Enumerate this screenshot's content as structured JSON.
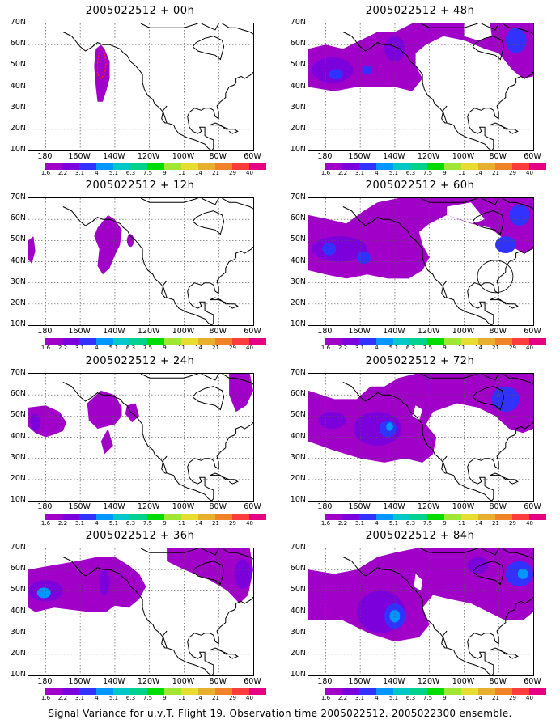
{
  "footer": "Signal Variance for u,v,T. Flight 19. Observation time 2005022512. 2005022300 ensemble.",
  "lat_labels": [
    "70N",
    "60N",
    "50N",
    "40N",
    "30N",
    "20N",
    "10N"
  ],
  "lon_labels": [
    "180",
    "160W",
    "140W",
    "120W",
    "100W",
    "80W",
    "60W"
  ],
  "colorbar": {
    "levels": [
      "1.6",
      "2.2",
      "3.1",
      "4",
      "5.1",
      "6.3",
      "7.5",
      "9",
      "11",
      "14",
      "21",
      "29",
      "40"
    ],
    "colors": [
      "#a000c8",
      "#7c00dc",
      "#3232ff",
      "#0096ff",
      "#00c8c8",
      "#00d28c",
      "#00dc00",
      "#a0e632",
      "#e6dc32",
      "#e6af2d",
      "#f08228",
      "#fa3c3c",
      "#e60082"
    ]
  },
  "panels": [
    {
      "title": "2005022512 + 00h",
      "lead_hours": 0
    },
    {
      "title": "2005022512 + 48h",
      "lead_hours": 48
    },
    {
      "title": "2005022512 + 12h",
      "lead_hours": 12
    },
    {
      "title": "2005022512 + 60h",
      "lead_hours": 60
    },
    {
      "title": "2005022512 + 24h",
      "lead_hours": 24
    },
    {
      "title": "2005022512 + 72h",
      "lead_hours": 72
    },
    {
      "title": "2005022512 + 36h",
      "lead_hours": 36
    },
    {
      "title": "2005022512 + 84h",
      "lead_hours": 84
    }
  ]
}
